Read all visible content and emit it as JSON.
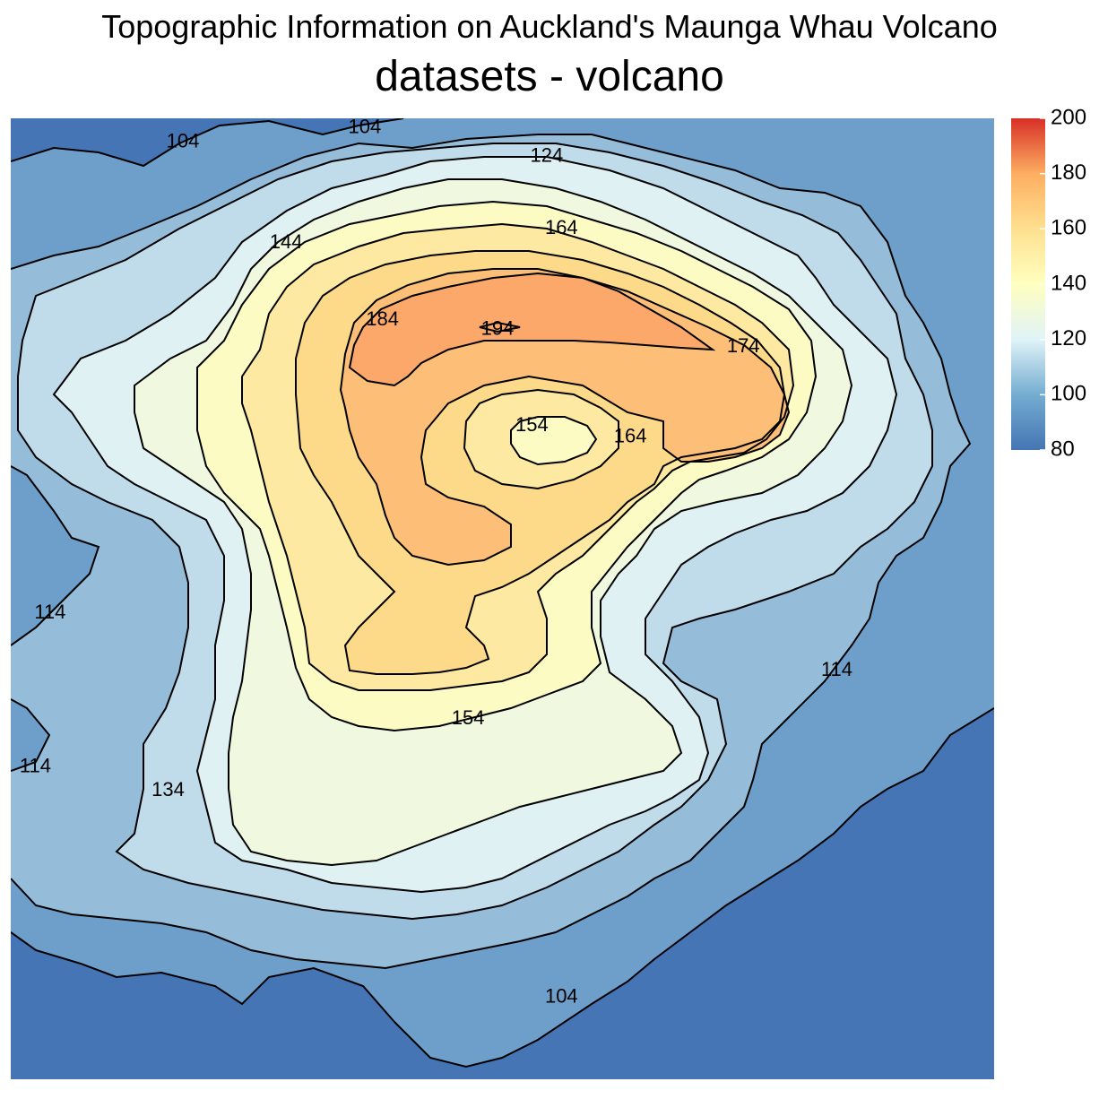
{
  "chart_data": {
    "type": "contour",
    "title": "Topographic Information on Auckland's Maunga Whau Volcano",
    "subtitle": "datasets - volcano",
    "xlim": [
      0,
      1
    ],
    "ylim": [
      0,
      1
    ],
    "contour_levels": [
      104,
      114,
      124,
      134,
      144,
      154,
      164,
      174,
      184,
      194
    ],
    "contour_labels": [
      {
        "text": "104",
        "x": 0.175,
        "y": 0.975
      },
      {
        "text": "104",
        "x": 0.36,
        "y": 0.99
      },
      {
        "text": "104",
        "x": 0.56,
        "y": 0.085
      },
      {
        "text": "124",
        "x": 0.545,
        "y": 0.96
      },
      {
        "text": "144",
        "x": 0.28,
        "y": 0.87
      },
      {
        "text": "164",
        "x": 0.56,
        "y": 0.885
      },
      {
        "text": "184",
        "x": 0.378,
        "y": 0.79
      },
      {
        "text": "194",
        "x": 0.495,
        "y": 0.78
      },
      {
        "text": "174",
        "x": 0.745,
        "y": 0.762
      },
      {
        "text": "154",
        "x": 0.53,
        "y": 0.68
      },
      {
        "text": "164",
        "x": 0.63,
        "y": 0.668
      },
      {
        "text": "114",
        "x": 0.04,
        "y": 0.485
      },
      {
        "text": "114",
        "x": 0.84,
        "y": 0.425
      },
      {
        "text": "114",
        "x": 0.025,
        "y": 0.325
      },
      {
        "text": "154",
        "x": 0.465,
        "y": 0.375
      },
      {
        "text": "134",
        "x": 0.16,
        "y": 0.3
      }
    ],
    "legend": {
      "position": "right",
      "range": [
        80,
        200
      ],
      "ticks": [
        200,
        180,
        160,
        140,
        120,
        100,
        80
      ],
      "palette": "RdYlBu"
    },
    "grid": false
  },
  "colors": {
    "band_80": "#4575b4",
    "band_100": "#6e9fcb",
    "band_110": "#95bdd9",
    "band_120": "#c0dceb",
    "band_126": "#e0f1f3",
    "band_134": "#f0f9df",
    "band_144": "#fcfbc4",
    "band_154": "#fee9a2",
    "band_164": "#fdd98a",
    "band_174": "#fdbf78",
    "band_184": "#fca86a",
    "band_200": "#d73027",
    "contour_line": "#000000"
  }
}
